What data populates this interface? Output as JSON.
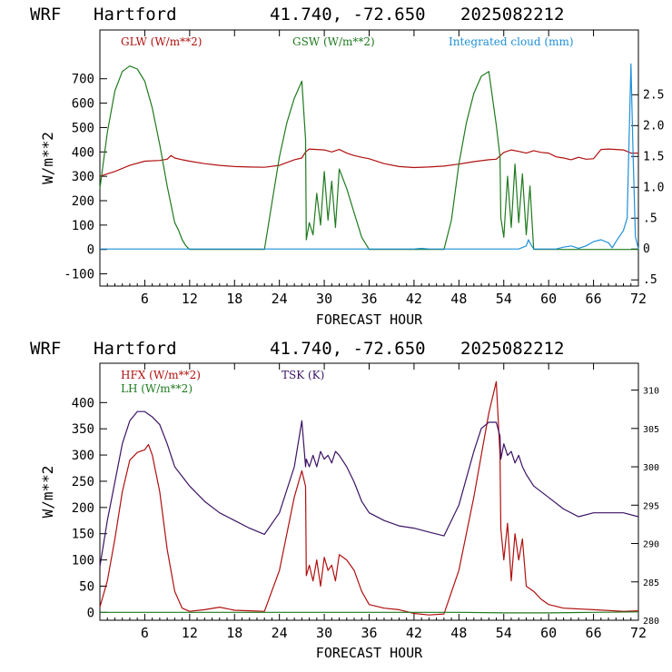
{
  "colors": {
    "red": "#b01010",
    "green": "#1f7a1f",
    "blue": "#1e90d8",
    "purple": "#3c1464",
    "axis": "#000000"
  },
  "chart_data": [
    {
      "type": "line",
      "header": {
        "model": "WRF",
        "location": "Hartford",
        "coords": "41.740, -72.650",
        "run": "2025082212"
      },
      "legend": [
        {
          "label": "GLW (W/m**2)",
          "color": "#b01010"
        },
        {
          "label": "GSW (W/m**2)",
          "color": "#1f7a1f"
        },
        {
          "label": "Integrated cloud (mm)",
          "color": "#1e90d8"
        }
      ],
      "xlabel": "FORECAST HOUR",
      "ylabel": "W/m**2",
      "xlim": [
        0,
        72
      ],
      "xticks": [
        6,
        12,
        18,
        24,
        30,
        36,
        42,
        48,
        54,
        60,
        66,
        72
      ],
      "ylim": [
        -150,
        900
      ],
      "yticks": [
        -100,
        0,
        100,
        200,
        300,
        400,
        500,
        600,
        700
      ],
      "y2lim": [
        -0.6,
        3.55
      ],
      "y2ticks": [
        -0.5,
        0,
        0.5,
        1.0,
        1.5,
        2.0,
        2.5
      ],
      "y2ticklabels": [
        ".5",
        "0",
        ".5",
        "1.0",
        "1.5",
        "2.0",
        "2.5"
      ],
      "series": [
        {
          "name": "GLW (W/m**2)",
          "color": "#b01010",
          "axis": "left",
          "x": [
            0,
            2,
            4,
            6,
            8,
            9,
            9.5,
            10,
            11,
            12,
            14,
            16,
            18,
            20,
            22,
            24,
            26,
            27,
            27.5,
            28,
            29,
            30,
            31,
            32,
            33,
            34,
            35,
            36,
            38,
            40,
            42,
            44,
            46,
            48,
            50,
            52,
            53,
            54,
            55,
            56,
            57,
            58,
            59,
            60,
            61,
            62,
            63,
            64,
            65,
            66,
            67,
            68,
            69,
            70,
            71,
            72
          ],
          "y": [
            300,
            320,
            345,
            362,
            365,
            370,
            385,
            375,
            368,
            362,
            352,
            345,
            340,
            338,
            337,
            345,
            368,
            375,
            400,
            412,
            410,
            408,
            400,
            410,
            395,
            385,
            378,
            372,
            352,
            340,
            336,
            338,
            342,
            350,
            360,
            368,
            370,
            398,
            408,
            402,
            395,
            405,
            398,
            395,
            380,
            375,
            368,
            378,
            370,
            372,
            410,
            412,
            410,
            408,
            395,
            395
          ]
        },
        {
          "name": "GSW (W/m**2)",
          "color": "#1f7a1f",
          "axis": "left",
          "x": [
            0,
            1,
            2,
            3,
            4,
            5,
            6,
            7,
            8,
            9,
            10,
            10.5,
            11,
            11.5,
            12,
            13,
            20,
            22,
            23,
            24,
            25,
            26,
            27,
            27.5,
            27.6,
            28,
            28.5,
            29,
            29.5,
            30,
            30.5,
            31,
            31.5,
            32,
            33,
            34,
            35,
            36,
            37,
            44,
            46,
            47,
            48,
            49,
            50,
            51,
            52,
            53,
            53.5,
            53.6,
            54,
            54.5,
            55,
            55.5,
            56,
            56.5,
            57,
            57.5,
            58,
            59,
            60,
            72
          ],
          "y": [
            250,
            480,
            650,
            730,
            752,
            740,
            690,
            580,
            430,
            260,
            110,
            80,
            40,
            15,
            0,
            0,
            0,
            0,
            190,
            380,
            520,
            620,
            690,
            450,
            40,
            110,
            60,
            230,
            100,
            320,
            120,
            280,
            90,
            330,
            250,
            150,
            50,
            0,
            0,
            0,
            0,
            120,
            350,
            520,
            640,
            710,
            730,
            510,
            380,
            130,
            50,
            300,
            90,
            350,
            110,
            310,
            60,
            260,
            0,
            0,
            0,
            0
          ]
        },
        {
          "name": "Integrated cloud (mm)",
          "color": "#1e90d8",
          "axis": "right",
          "x": [
            0,
            42,
            43,
            44,
            56,
            57,
            57.3,
            57.6,
            58,
            60,
            61,
            62,
            63,
            64,
            65,
            66,
            67,
            68,
            68.5,
            69,
            70,
            70.5,
            71,
            71.3,
            71.6,
            72
          ],
          "y": [
            0,
            0,
            0.01,
            0,
            0,
            0.05,
            0.15,
            0.08,
            0,
            0,
            0,
            0.03,
            0.05,
            0.01,
            0.05,
            0.12,
            0.15,
            0.1,
            0.02,
            0.12,
            0.3,
            0.5,
            3.0,
            1.5,
            0.2,
            0
          ]
        }
      ]
    },
    {
      "type": "line",
      "header": {
        "model": "WRF",
        "location": "Hartford",
        "coords": "41.740, -72.650",
        "run": "2025082212"
      },
      "legend": [
        {
          "label": "HFX (W/m**2)",
          "color": "#b01010"
        },
        {
          "label": "LH  (W/m**2)",
          "color": "#1f7a1f"
        },
        {
          "label": "TSK (K)",
          "color": "#3c1464"
        }
      ],
      "xlabel": "FORECAST HOUR",
      "ylabel": "W/m**2",
      "xlim": [
        0,
        72
      ],
      "xticks": [
        6,
        12,
        18,
        24,
        30,
        36,
        42,
        48,
        54,
        60,
        66,
        72
      ],
      "ylim": [
        -15,
        475
      ],
      "yticks": [
        0,
        50,
        100,
        150,
        200,
        250,
        300,
        350,
        400
      ],
      "y2lim": [
        280,
        313.5
      ],
      "y2ticks": [
        280,
        285,
        290,
        295,
        300,
        305,
        310
      ],
      "series": [
        {
          "name": "HFX (W/m**2)",
          "color": "#b01010",
          "axis": "left",
          "x": [
            0,
            1,
            2,
            3,
            4,
            5,
            6,
            6.5,
            7,
            8,
            9,
            10,
            11,
            12,
            14,
            16,
            18,
            20,
            22,
            24,
            26,
            27,
            27.5,
            27.6,
            28,
            28.5,
            29,
            29.5,
            30,
            30.5,
            31,
            31.5,
            32,
            33,
            34,
            35,
            36,
            38,
            40,
            42,
            44,
            46,
            48,
            50,
            51,
            52,
            53,
            53.5,
            53.6,
            54,
            54.5,
            55,
            55.5,
            56,
            56.5,
            57,
            58,
            59,
            60,
            62,
            66,
            70,
            72
          ],
          "y": [
            10,
            60,
            140,
            230,
            290,
            305,
            310,
            320,
            300,
            230,
            120,
            40,
            8,
            2,
            5,
            10,
            4,
            3,
            2,
            80,
            220,
            270,
            240,
            70,
            90,
            60,
            100,
            50,
            105,
            80,
            90,
            60,
            110,
            100,
            80,
            40,
            15,
            8,
            5,
            -2,
            -5,
            -3,
            80,
            220,
            300,
            380,
            440,
            300,
            160,
            100,
            170,
            60,
            150,
            100,
            140,
            50,
            40,
            25,
            15,
            8,
            5,
            2,
            3
          ]
        },
        {
          "name": "LH  (W/m**2)",
          "color": "#1f7a1f",
          "axis": "left",
          "x": [
            0,
            12,
            24,
            36,
            48,
            54,
            60,
            66,
            72
          ],
          "y": [
            0,
            0,
            0,
            0,
            0,
            -1,
            -1,
            0,
            1
          ]
        },
        {
          "name": "TSK (K)",
          "color": "#3c1464",
          "axis": "right",
          "x": [
            0,
            1,
            2,
            3,
            4,
            5,
            6,
            7,
            8,
            9,
            10,
            12,
            14,
            16,
            18,
            20,
            22,
            24,
            26,
            27,
            27.5,
            27.6,
            28,
            28.5,
            29,
            29.5,
            30,
            30.5,
            31,
            31.5,
            32,
            33,
            34,
            35,
            36,
            38,
            40,
            42,
            44,
            46,
            48,
            50,
            51,
            52,
            53,
            53.5,
            53.6,
            54,
            54.5,
            55,
            55.5,
            56,
            56.5,
            57,
            58,
            60,
            62,
            64,
            66,
            68,
            70,
            72
          ],
          "y": [
            287,
            293,
            298,
            303,
            306,
            307.2,
            307.2,
            306.5,
            305.5,
            303,
            300,
            297.5,
            295.5,
            294,
            293,
            292,
            291.2,
            294,
            300,
            306,
            300,
            301,
            300,
            301.5,
            300,
            302,
            301,
            301.5,
            300.5,
            302,
            301.5,
            300,
            298,
            295.5,
            294,
            293,
            292.3,
            292,
            291.5,
            291,
            295,
            302,
            305,
            305.8,
            305.8,
            304,
            301,
            303,
            301.5,
            302,
            300.5,
            301.5,
            300,
            299,
            297.5,
            296,
            294.5,
            293.5,
            294,
            294,
            294,
            293.5
          ]
        }
      ]
    }
  ]
}
